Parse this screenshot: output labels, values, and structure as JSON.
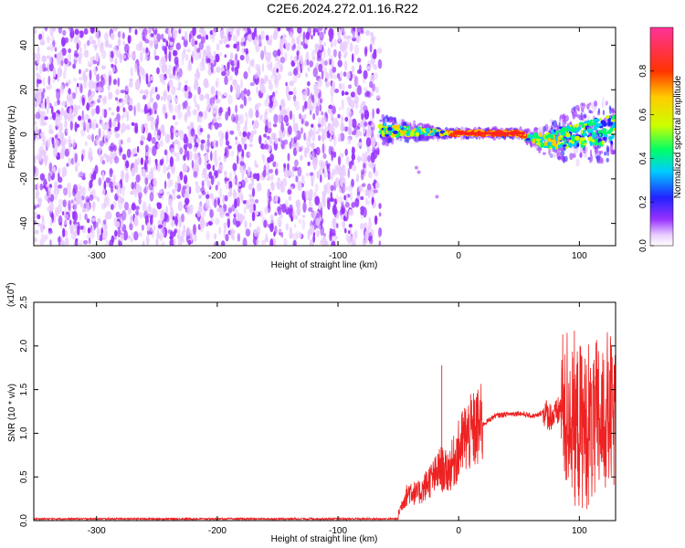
{
  "title": "C2E6.2024.272.01.16.R22",
  "chart_data": [
    {
      "type": "heatmap",
      "xlabel": "Height of straight line (km)",
      "ylabel": "Frequency (Hz)",
      "xlim": [
        -352,
        130
      ],
      "ylim": [
        -50,
        48
      ],
      "x_ticks": [
        -300,
        -200,
        -100,
        0,
        100
      ],
      "x_tick_labels": [
        "-300",
        "-200",
        "-100",
        "0",
        "100"
      ],
      "y_ticks": [
        -40,
        -20,
        0,
        20,
        40
      ],
      "y_tick_labels": [
        "-40",
        "-20",
        "0",
        "20",
        "40"
      ],
      "grid": false,
      "noise_region_x": [
        -352,
        -65
      ],
      "signal_trace": {
        "x": [
          -65,
          -50,
          -40,
          -30,
          -20,
          -10,
          0,
          10,
          20,
          30,
          40,
          50,
          60,
          65,
          70,
          80,
          90,
          100,
          110,
          120,
          130
        ],
        "frequency": [
          2,
          1.5,
          1.2,
          1,
          0.8,
          0.5,
          0.5,
          0.5,
          0.5,
          0.5,
          0.5,
          0.5,
          -2,
          -2,
          -3,
          -2,
          -1,
          0,
          1,
          2,
          2
        ],
        "spread": [
          4,
          3,
          2.5,
          2,
          1.5,
          1,
          1,
          1,
          1,
          1,
          1,
          1,
          2,
          3,
          4,
          6,
          7,
          8,
          8,
          9,
          9
        ]
      },
      "colorbar": {
        "label": "Normalized spectral amplitude",
        "range": [
          0,
          1
        ],
        "ticks": [
          0.0,
          0.2,
          0.4,
          0.6,
          0.8
        ],
        "tick_labels": [
          "0.0",
          "0.2",
          "0.4",
          "0.6",
          "0.8"
        ]
      }
    },
    {
      "type": "line",
      "xlabel": "Height of straight line (km)",
      "ylabel": "SNR (10 * v/v)",
      "multiplier_label": "(x10",
      "multiplier_exp": "4",
      "multiplier_close": ")",
      "xlim": [
        -352,
        130
      ],
      "ylim": [
        0,
        2.5
      ],
      "x_ticks": [
        -300,
        -200,
        -100,
        0,
        100
      ],
      "x_tick_labels": [
        "-300",
        "-200",
        "-100",
        "0",
        "100"
      ],
      "y_ticks": [
        0.0,
        0.5,
        1.0,
        1.5,
        2.0,
        2.5
      ],
      "y_tick_labels": [
        "0.0",
        "0.5",
        "1.0",
        "1.5",
        "2.0",
        "2.5"
      ],
      "series_color": "#ee2222",
      "grid": false,
      "series": [
        {
          "x": [
            -352,
            -300,
            -200,
            -100,
            -55,
            -50,
            -45,
            -40,
            -35,
            -30,
            -25,
            -20,
            -15,
            -10,
            -5,
            0,
            5,
            10,
            15,
            20,
            30,
            40,
            50,
            60,
            65,
            70,
            75,
            80,
            85,
            90,
            95,
            100,
            105,
            110,
            115,
            120,
            125,
            130
          ],
          "y": [
            0.0,
            0.0,
            0.0,
            0.0,
            0.0,
            0.08,
            0.25,
            0.35,
            0.3,
            0.35,
            0.45,
            0.5,
            0.6,
            0.55,
            0.65,
            0.8,
            0.95,
            1.0,
            1.05,
            1.1,
            1.2,
            1.22,
            1.23,
            1.2,
            1.2,
            1.25,
            1.2,
            1.2,
            1.3,
            1.25,
            1.1,
            1.05,
            1.1,
            1.05,
            1.1,
            1.15,
            1.2,
            1.2
          ]
        }
      ]
    }
  ]
}
